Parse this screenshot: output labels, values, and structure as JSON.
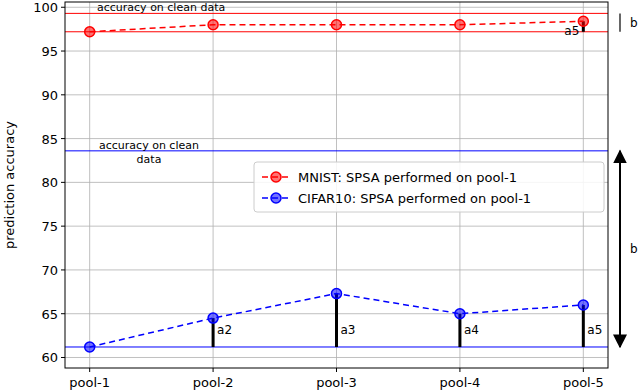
{
  "chart_data": {
    "type": "line",
    "y_label": "prediction accuracy",
    "categories": [
      "pool-1",
      "pool-2",
      "pool-3",
      "pool-4",
      "pool-5"
    ],
    "series": [
      {
        "name": "MNIST: SPSA performed on pool-1",
        "color": "#ff0000",
        "marker": "circle",
        "line_style": "dashed",
        "values": [
          97.2,
          98.0,
          98.0,
          98.0,
          98.4
        ]
      },
      {
        "name": "CIFAR10: SPSA performed on pool-1",
        "color": "#0000ff",
        "marker": "circle",
        "line_style": "dashed",
        "values": [
          61.2,
          64.5,
          67.3,
          65.0,
          66.0
        ]
      }
    ],
    "ylim": [
      58.8,
      100.6
    ],
    "yticks": [
      60,
      65,
      70,
      75,
      80,
      85,
      90,
      95,
      100
    ],
    "grid": true,
    "legend": "center right",
    "reference_lines": [
      {
        "value": 99.3,
        "color": "#ff0000",
        "label": "accuracy on clean data"
      },
      {
        "value": 97.2,
        "color": "#ff0000"
      },
      {
        "value": 83.6,
        "color": "#0000ff",
        "label": "accuracy on clean data"
      },
      {
        "value": 61.2,
        "color": "#0000ff"
      }
    ],
    "annotations": [
      {
        "text": "a5",
        "x": "pool-5",
        "from": 97.2,
        "to": 98.4
      },
      {
        "text": "a2",
        "x": "pool-2",
        "from": 61.2,
        "to": 64.5
      },
      {
        "text": "a3",
        "x": "pool-3",
        "from": 61.2,
        "to": 67.3
      },
      {
        "text": "a4",
        "x": "pool-4",
        "from": 61.2,
        "to": 65.0
      },
      {
        "text": "a5",
        "x": "pool-5",
        "from": 61.2,
        "to": 66.0
      }
    ],
    "brackets": [
      {
        "text": "b",
        "from": 97.2,
        "to": 99.3
      },
      {
        "text": "b",
        "from": 61.2,
        "to": 83.6
      }
    ]
  }
}
